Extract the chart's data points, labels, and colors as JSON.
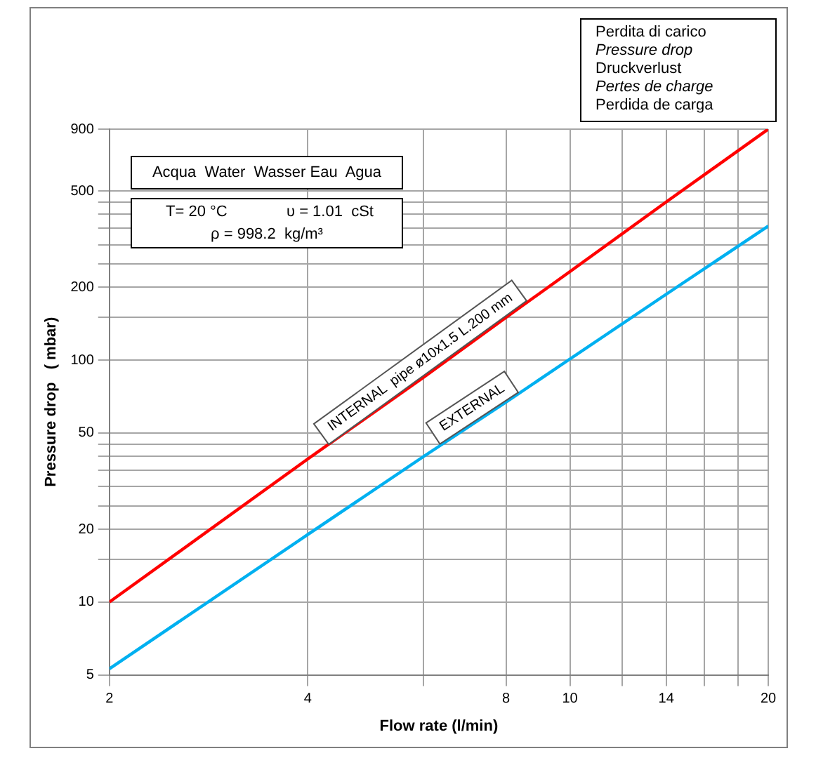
{
  "chart_data": {
    "type": "line",
    "xlabel": "Flow rate (l/min)",
    "ylabel": "Pressure drop   ( mbar)",
    "x": [
      2,
      4,
      6,
      8,
      10,
      14,
      20
    ],
    "series": [
      {
        "name": "INTERNAL  pipe ø10x1.5 L.200 mm",
        "color": "#ff0000",
        "values": [
          10,
          39,
          85,
          150,
          232,
          450,
          900
        ]
      },
      {
        "name": "EXTERNAL",
        "color": "#00b0f0",
        "values": [
          5.3,
          19,
          40,
          67,
          101,
          187,
          358
        ]
      }
    ],
    "log": "xy",
    "xlim": [
      2,
      20
    ],
    "ylim": [
      5,
      900
    ],
    "xticks": [
      2,
      4,
      {
        "value": 6,
        "label": null
      },
      8,
      10,
      {
        "value": 12,
        "label": null
      },
      14,
      {
        "value": 16,
        "label": null
      },
      {
        "value": 18,
        "label": null
      },
      20
    ],
    "yticks": [
      5,
      10,
      {
        "value": 15,
        "label": null
      },
      20,
      {
        "value": 25,
        "label": null
      },
      {
        "value": 30,
        "label": null
      },
      {
        "value": 35,
        "label": null
      },
      {
        "value": 40,
        "label": null
      },
      {
        "value": 45,
        "label": null
      },
      50,
      100,
      {
        "value": 150,
        "label": null
      },
      200,
      {
        "value": 250,
        "label": null
      },
      {
        "value": 300,
        "label": null
      },
      {
        "value": 350,
        "label": null
      },
      {
        "value": 400,
        "label": null
      },
      {
        "value": 450,
        "label": null
      },
      500,
      900
    ],
    "grid": true,
    "marker": "none",
    "line_style": "solid",
    "annotations": [
      "Perdita di carico",
      "Pressure drop",
      "Druckverlust",
      "Pertes de charge",
      "Perdida de carga",
      "Acqua  Water  Wasser Eau  Agua",
      "T= 20 °C",
      "υ = 1.01  cSt",
      "ρ = 998.2  kg/m³"
    ]
  }
}
